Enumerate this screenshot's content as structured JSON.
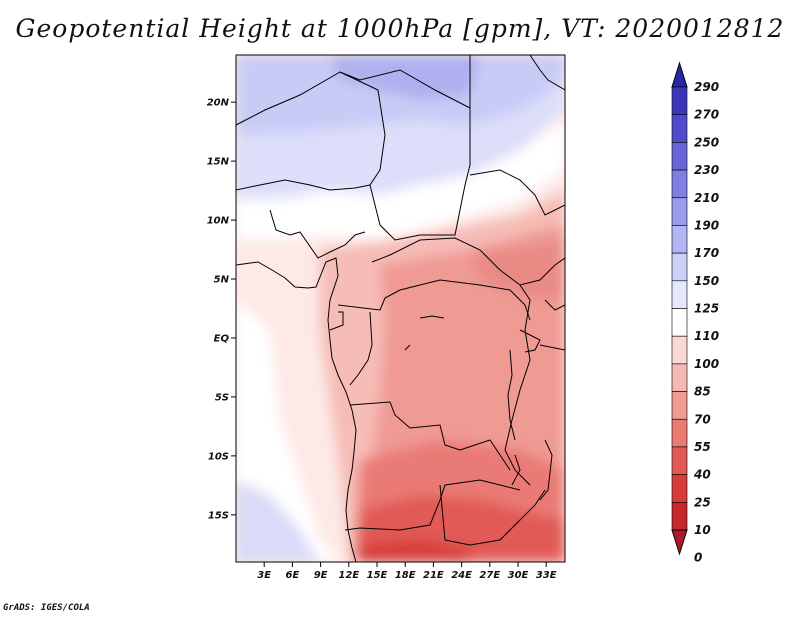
{
  "title": "Geopotential Height at 1000hPa [gpm], VT: 2020012812",
  "credit": "GrADS: IGES/COLA",
  "map": {
    "lon_range": [
      0,
      35
    ],
    "lat_range": [
      -19,
      24
    ],
    "lat_ticks": [
      {
        "value": 20,
        "label": "20N"
      },
      {
        "value": 15,
        "label": "15N"
      },
      {
        "value": 10,
        "label": "10N"
      },
      {
        "value": 5,
        "label": "5N"
      },
      {
        "value": 0,
        "label": "EQ"
      },
      {
        "value": -5,
        "label": "5S"
      },
      {
        "value": -10,
        "label": "10S"
      },
      {
        "value": -15,
        "label": "15S"
      }
    ],
    "lon_ticks": [
      {
        "value": 3,
        "label": "3E"
      },
      {
        "value": 6,
        "label": "6E"
      },
      {
        "value": 9,
        "label": "9E"
      },
      {
        "value": 12,
        "label": "12E"
      },
      {
        "value": 15,
        "label": "15E"
      },
      {
        "value": 18,
        "label": "18E"
      },
      {
        "value": 21,
        "label": "21E"
      },
      {
        "value": 24,
        "label": "24E"
      },
      {
        "value": 27,
        "label": "27E"
      },
      {
        "value": 30,
        "label": "30E"
      },
      {
        "value": 33,
        "label": "33E"
      }
    ]
  },
  "colorbar": {
    "levels": [
      0,
      10,
      25,
      40,
      55,
      70,
      85,
      100,
      110,
      125,
      150,
      170,
      190,
      210,
      230,
      250,
      270,
      290
    ],
    "colors": [
      "#b2182b",
      "#c6282c",
      "#d63d3a",
      "#e15a55",
      "#ea7a74",
      "#f09a94",
      "#f4b9b3",
      "#fad9d5",
      "#ffffff",
      "#e5e7fb",
      "#ccd0f7",
      "#b2b6f2",
      "#9a9cec",
      "#8080e4",
      "#6766d8",
      "#4f4ccb",
      "#3b37bc",
      "#2a26a6"
    ],
    "labels": [
      "0",
      "10",
      "25",
      "40",
      "55",
      "70",
      "85",
      "100",
      "110",
      "125",
      "150",
      "170",
      "190",
      "210",
      "230",
      "250",
      "270",
      "290"
    ]
  }
}
